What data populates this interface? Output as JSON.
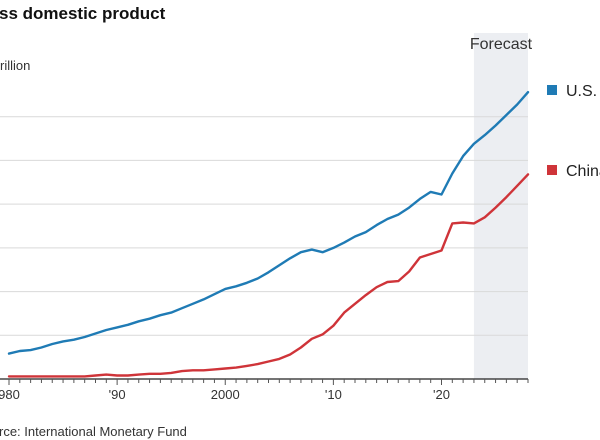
{
  "chart_data": {
    "type": "line",
    "title": "ss domestic product",
    "unit_label": "rillion",
    "source": "rce: International Monetary Fund",
    "forecast_label": "Forecast",
    "forecast_start": 2023,
    "xlim": [
      1980,
      2028
    ],
    "ylim": [
      0,
      35
    ],
    "x_ticks": [
      1980,
      1990,
      2000,
      2010,
      2020
    ],
    "x_tick_labels": [
      "980",
      "'90",
      "2000",
      "'10",
      "'20"
    ],
    "y_gridlines": [
      5,
      10,
      15,
      20,
      25,
      30
    ],
    "grid": true,
    "legend_position": "right",
    "colors": {
      "forecast_band": "#eceef2",
      "grid": "#d9d9d9",
      "axis": "#222222"
    },
    "series": [
      {
        "name": "U.S.",
        "color": "#1f7bb5",
        "x": [
          1980,
          1981,
          1982,
          1983,
          1984,
          1985,
          1986,
          1987,
          1988,
          1989,
          1990,
          1991,
          1992,
          1993,
          1994,
          1995,
          1996,
          1997,
          1998,
          1999,
          2000,
          2001,
          2002,
          2003,
          2004,
          2005,
          2006,
          2007,
          2008,
          2009,
          2010,
          2011,
          2012,
          2013,
          2014,
          2015,
          2016,
          2017,
          2018,
          2019,
          2020,
          2021,
          2022,
          2023,
          2024,
          2025,
          2026,
          2027,
          2028
        ],
        "values": [
          2.9,
          3.2,
          3.3,
          3.6,
          4.0,
          4.3,
          4.5,
          4.8,
          5.2,
          5.6,
          5.9,
          6.2,
          6.6,
          6.9,
          7.3,
          7.6,
          8.1,
          8.6,
          9.1,
          9.7,
          10.3,
          10.6,
          11.0,
          11.5,
          12.2,
          13.0,
          13.8,
          14.5,
          14.8,
          14.5,
          15.0,
          15.6,
          16.3,
          16.8,
          17.6,
          18.3,
          18.8,
          19.6,
          20.6,
          21.4,
          21.1,
          23.5,
          25.5,
          26.9,
          27.9,
          29.0,
          30.2,
          31.4,
          32.8
        ]
      },
      {
        "name": "China",
        "color": "#cf3439",
        "x": [
          1980,
          1981,
          1982,
          1983,
          1984,
          1985,
          1986,
          1987,
          1988,
          1989,
          1990,
          1991,
          1992,
          1993,
          1994,
          1995,
          1996,
          1997,
          1998,
          1999,
          2000,
          2001,
          2002,
          2003,
          2004,
          2005,
          2006,
          2007,
          2008,
          2009,
          2010,
          2011,
          2012,
          2013,
          2014,
          2015,
          2016,
          2017,
          2018,
          2019,
          2020,
          2021,
          2022,
          2023,
          2024,
          2025,
          2026,
          2027,
          2028
        ],
        "values": [
          0.3,
          0.3,
          0.3,
          0.3,
          0.3,
          0.3,
          0.3,
          0.3,
          0.4,
          0.5,
          0.4,
          0.4,
          0.5,
          0.6,
          0.6,
          0.7,
          0.9,
          1.0,
          1.0,
          1.1,
          1.2,
          1.3,
          1.5,
          1.7,
          2.0,
          2.3,
          2.8,
          3.6,
          4.6,
          5.1,
          6.1,
          7.6,
          8.6,
          9.6,
          10.5,
          11.1,
          11.2,
          12.3,
          13.9,
          14.3,
          14.7,
          17.8,
          17.9,
          17.8,
          18.5,
          19.6,
          20.8,
          22.1,
          23.4
        ]
      }
    ]
  }
}
